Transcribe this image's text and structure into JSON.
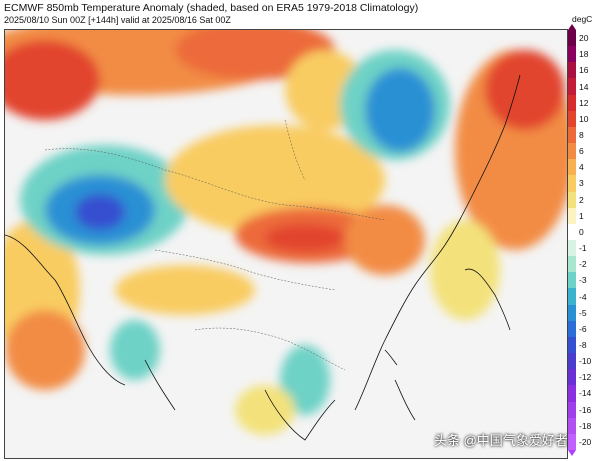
{
  "header": {
    "title": "ECMWF 850mb Temperature Anomaly (shaded, based on ERA5 1979-2018 Climatology)",
    "subtitle": "2025/08/10 Sun 00Z [+144h] valid at 2025/08/16 Sat 00Z"
  },
  "colorbar": {
    "units": "degC",
    "levels": [
      {
        "label": "20",
        "color": "#6b0048"
      },
      {
        "label": "18",
        "color": "#8a0060"
      },
      {
        "label": "16",
        "color": "#a8103f"
      },
      {
        "label": "14",
        "color": "#c21c38"
      },
      {
        "label": "12",
        "color": "#d62c2c"
      },
      {
        "label": "10",
        "color": "#e2452e"
      },
      {
        "label": "8",
        "color": "#ec6a3a"
      },
      {
        "label": "6",
        "color": "#f28c45"
      },
      {
        "label": "4",
        "color": "#f7b052"
      },
      {
        "label": "3",
        "color": "#f9cc62"
      },
      {
        "label": "2",
        "color": "#f3e27c"
      },
      {
        "label": "1",
        "color": "#fbf3c2"
      },
      {
        "label": "0",
        "color": "#ffffff"
      },
      {
        "label": "-1",
        "color": "#d8f2e4"
      },
      {
        "label": "-2",
        "color": "#a8e6d0"
      },
      {
        "label": "-3",
        "color": "#6ed2c6"
      },
      {
        "label": "-4",
        "color": "#3db2cf"
      },
      {
        "label": "-5",
        "color": "#2a90d4"
      },
      {
        "label": "-6",
        "color": "#2c6ed6"
      },
      {
        "label": "-8",
        "color": "#3550d0"
      },
      {
        "label": "-10",
        "color": "#4a3ccc"
      },
      {
        "label": "-12",
        "color": "#6a30d6"
      },
      {
        "label": "-14",
        "color": "#8a30e0"
      },
      {
        "label": "-16",
        "color": "#a040ea"
      },
      {
        "label": "-18",
        "color": "#b050f0"
      },
      {
        "label": "-20",
        "color": "#c060ff"
      }
    ]
  },
  "colors": {
    "background": "#f4f4f4",
    "strong_warm": "#e2452e",
    "warm": "#f28c45",
    "mild_warm": "#f9cc62",
    "slight_warm": "#f3e27c",
    "cool": "#6ed2c6",
    "cold": "#2a90d4",
    "very_cold": "#3550d0",
    "coastline": "#111111",
    "border": "#555555"
  },
  "watermark": "头条 @中国气象爱好者"
}
